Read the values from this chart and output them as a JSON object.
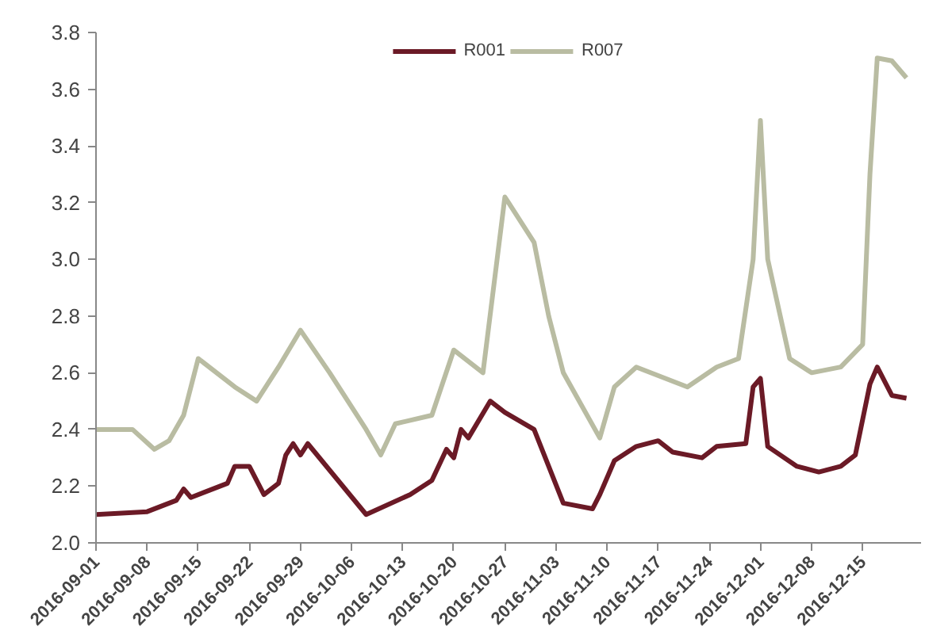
{
  "chart_data": {
    "type": "line",
    "legend": "top",
    "grid": false,
    "marker": "none",
    "line_style": "solid",
    "xlim": [
      "2016-09-01",
      "2016-12-23"
    ],
    "xticks": [
      "2016-09-01",
      "2016-09-08",
      "2016-09-15",
      "2016-09-22",
      "2016-09-29",
      "2016-10-06",
      "2016-10-13",
      "2016-10-20",
      "2016-10-27",
      "2016-11-03",
      "2016-11-10",
      "2016-11-17",
      "2016-11-24",
      "2016-12-01",
      "2016-12-08",
      "2016-12-15"
    ],
    "ylim": [
      2.0,
      3.8
    ],
    "yticks": [
      {
        "value": 2.0,
        "label": "2.0"
      },
      2.2,
      2.4,
      2.6,
      2.8,
      {
        "value": 3.0,
        "label": "3.0"
      },
      3.2,
      3.4,
      3.6,
      3.8
    ],
    "series": [
      {
        "name": "R001",
        "color": "#6b1a26",
        "x": [
          "2016-09-01",
          "2016-09-08",
          "2016-09-12",
          "2016-09-13",
          "2016-09-14",
          "2016-09-19",
          "2016-09-20",
          "2016-09-22",
          "2016-09-24",
          "2016-09-26",
          "2016-09-27",
          "2016-09-28",
          "2016-09-29",
          "2016-09-30",
          "2016-10-08",
          "2016-10-14",
          "2016-10-17",
          "2016-10-19",
          "2016-10-20",
          "2016-10-21",
          "2016-10-22",
          "2016-10-25",
          "2016-10-27",
          "2016-10-31",
          "2016-11-02",
          "2016-11-04",
          "2016-11-08",
          "2016-11-09",
          "2016-11-11",
          "2016-11-14",
          "2016-11-17",
          "2016-11-19",
          "2016-11-23",
          "2016-11-25",
          "2016-11-29",
          "2016-11-30",
          "2016-12-01",
          "2016-12-02",
          "2016-12-06",
          "2016-12-09",
          "2016-12-12",
          "2016-12-14",
          "2016-12-16",
          "2016-12-17",
          "2016-12-19",
          "2016-12-21"
        ],
        "values": [
          2.1,
          2.11,
          2.15,
          2.19,
          2.16,
          2.21,
          2.27,
          2.27,
          2.17,
          2.21,
          2.31,
          2.35,
          2.31,
          2.35,
          2.1,
          2.17,
          2.22,
          2.33,
          2.3,
          2.4,
          2.37,
          2.5,
          2.46,
          2.4,
          2.27,
          2.14,
          2.12,
          2.17,
          2.29,
          2.34,
          2.36,
          2.32,
          2.3,
          2.34,
          2.35,
          2.55,
          2.58,
          2.34,
          2.27,
          2.25,
          2.27,
          2.31,
          2.56,
          2.62,
          2.52,
          2.51
        ]
      },
      {
        "name": "R007",
        "color": "#b9bca2",
        "x": [
          "2016-09-01",
          "2016-09-06",
          "2016-09-09",
          "2016-09-11",
          "2016-09-13",
          "2016-09-15",
          "2016-09-20",
          "2016-09-23",
          "2016-09-26",
          "2016-09-29",
          "2016-10-03",
          "2016-10-08",
          "2016-10-10",
          "2016-10-12",
          "2016-10-17",
          "2016-10-20",
          "2016-10-24",
          "2016-10-27",
          "2016-10-31",
          "2016-11-02",
          "2016-11-04",
          "2016-11-09",
          "2016-11-11",
          "2016-11-14",
          "2016-11-21",
          "2016-11-25",
          "2016-11-28",
          "2016-11-30",
          "2016-12-01",
          "2016-12-02",
          "2016-12-05",
          "2016-12-08",
          "2016-12-12",
          "2016-12-15",
          "2016-12-16",
          "2016-12-17",
          "2016-12-19",
          "2016-12-21"
        ],
        "values": [
          2.4,
          2.4,
          2.33,
          2.36,
          2.45,
          2.65,
          2.55,
          2.5,
          2.62,
          2.75,
          2.6,
          2.4,
          2.31,
          2.42,
          2.45,
          2.68,
          2.6,
          3.22,
          3.06,
          2.8,
          2.6,
          2.37,
          2.55,
          2.62,
          2.55,
          2.62,
          2.65,
          3.0,
          3.49,
          3.0,
          2.65,
          2.6,
          2.62,
          2.7,
          3.3,
          3.71,
          3.7,
          3.64
        ]
      }
    ]
  }
}
